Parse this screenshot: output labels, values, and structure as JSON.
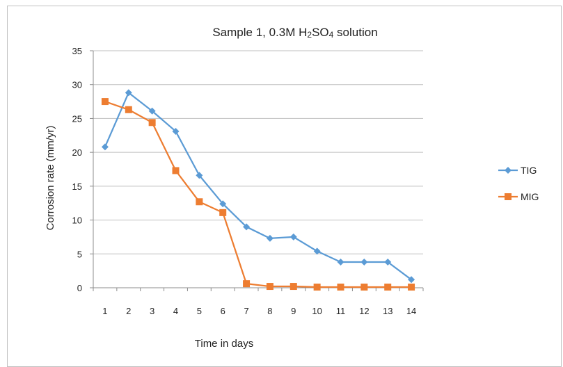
{
  "chart_data": {
    "type": "line",
    "title_main": "Sample 1,  0.3M H",
    "title_sub1": "2",
    "title_mid": "SO",
    "title_sub2": "4",
    "title_end": " solution",
    "xlabel": "Time in days",
    "ylabel": "Corrosion rate (mm/yr)",
    "categories": [
      "1",
      "2",
      "3",
      "4",
      "5",
      "6",
      "7",
      "8",
      "9",
      "10",
      "11",
      "12",
      "13",
      "14"
    ],
    "ylim": [
      0,
      35
    ],
    "yticks": [
      0,
      5,
      10,
      15,
      20,
      25,
      30,
      35
    ],
    "grid": true,
    "legend_position": "right",
    "series": [
      {
        "name": "TIG",
        "color": "#5b9bd5",
        "marker": "diamond",
        "values": [
          20.8,
          28.8,
          26.1,
          23.1,
          16.6,
          12.4,
          9.0,
          7.3,
          7.5,
          5.4,
          3.8,
          3.8,
          3.8,
          1.2
        ]
      },
      {
        "name": "MIG",
        "color": "#ed7d31",
        "marker": "square",
        "values": [
          27.5,
          26.3,
          24.4,
          17.3,
          12.7,
          11.1,
          0.6,
          0.2,
          0.2,
          0.1,
          0.1,
          0.1,
          0.1,
          0.1
        ]
      }
    ]
  }
}
